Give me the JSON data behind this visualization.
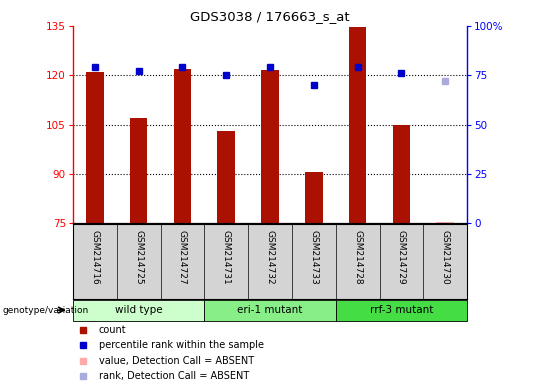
{
  "title": "GDS3038 / 176663_s_at",
  "samples": [
    "GSM214716",
    "GSM214725",
    "GSM214727",
    "GSM214731",
    "GSM214732",
    "GSM214733",
    "GSM214728",
    "GSM214729",
    "GSM214730"
  ],
  "count_values": [
    121.0,
    107.0,
    122.0,
    103.0,
    121.5,
    90.5,
    134.5,
    105.0,
    null
  ],
  "rank_values": [
    79,
    77,
    79,
    75,
    79,
    70,
    79,
    76,
    null
  ],
  "absent_count": [
    null,
    null,
    null,
    null,
    null,
    null,
    null,
    null,
    75.5
  ],
  "absent_rank": [
    null,
    null,
    null,
    null,
    null,
    null,
    null,
    null,
    72
  ],
  "groups": [
    {
      "label": "wild type",
      "indices": [
        0,
        1,
        2
      ],
      "color": "#ccffcc"
    },
    {
      "label": "eri-1 mutant",
      "indices": [
        3,
        4,
        5
      ],
      "color": "#88ee88"
    },
    {
      "label": "rrf-3 mutant",
      "indices": [
        6,
        7,
        8
      ],
      "color": "#44dd44"
    }
  ],
  "ylim_left": [
    75,
    135
  ],
  "ylim_right": [
    0,
    100
  ],
  "yticks_left": [
    75,
    90,
    105,
    120,
    135
  ],
  "yticks_right": [
    0,
    25,
    50,
    75,
    100
  ],
  "bar_color": "#aa1100",
  "rank_color": "#0000cc",
  "absent_bar_color": "#ffaaaa",
  "absent_rank_color": "#aaaadd",
  "bar_width": 0.4
}
